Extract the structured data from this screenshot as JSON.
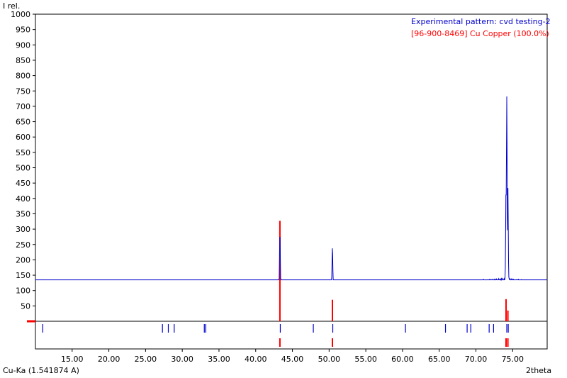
{
  "chart_data": {
    "type": "line",
    "y_label": "I rel.",
    "x_label": "2theta",
    "radiation_label": "Cu-Ka (1.541874 A)",
    "xlim": [
      10,
      79.7
    ],
    "ylim": [
      0,
      1000
    ],
    "y_ticks": [
      50,
      100,
      150,
      200,
      250,
      300,
      350,
      400,
      450,
      500,
      550,
      600,
      650,
      700,
      750,
      800,
      850,
      900,
      950,
      1000
    ],
    "y_tick_labels": [
      "50",
      "100",
      "150",
      "200",
      "250",
      "300",
      "350",
      "400",
      "450",
      "500",
      "550",
      "600",
      "650",
      "700",
      "750",
      "800",
      "850",
      "900",
      "950",
      "1000"
    ],
    "x_ticks": [
      15,
      20,
      25,
      30,
      35,
      40,
      45,
      50,
      55,
      60,
      65,
      70,
      75
    ],
    "x_tick_labels": [
      "15.00",
      "20.00",
      "25.00",
      "30.00",
      "35.00",
      "40.00",
      "45.00",
      "50.00",
      "55.00",
      "60.00",
      "65.00",
      "70.00",
      "75.00"
    ],
    "series": [
      {
        "name": "Experimental pattern: cvd testing-2",
        "color": "#0000cc",
        "baseline": [
          [
            10,
            40
          ],
          [
            15,
            55
          ],
          [
            20,
            70
          ],
          [
            25,
            88
          ],
          [
            30,
            102
          ],
          [
            35,
            110
          ],
          [
            40,
            115
          ],
          [
            45,
            119
          ],
          [
            50,
            122
          ],
          [
            55,
            123
          ],
          [
            60,
            125
          ],
          [
            65,
            127
          ],
          [
            70,
            130
          ],
          [
            74,
            135
          ],
          [
            79.7,
            125
          ]
        ],
        "peaks": [
          {
            "x": 43.3,
            "y": 287
          },
          {
            "x": 50.45,
            "y": 240
          },
          {
            "x": 74.1,
            "y": 435
          },
          {
            "x": 74.2,
            "y": 732
          },
          {
            "x": 74.35,
            "y": 440
          }
        ]
      },
      {
        "name": "[96-900-8469] Cu  Copper (100.0%)",
        "color": "#ff0000",
        "sticks": [
          {
            "x": 43.3,
            "y": 327
          },
          {
            "x": 50.45,
            "y": 70
          },
          {
            "x": 74.1,
            "y": 72
          },
          {
            "x": 74.35,
            "y": 35
          }
        ]
      }
    ],
    "reflection_ticks_row1": [
      11,
      27.3,
      28.1,
      28.9,
      33.0,
      33.2,
      43.35,
      47.85,
      50.5,
      60.4,
      65.85,
      68.8,
      69.3,
      71.8,
      72.4,
      74.2,
      74.4
    ],
    "reflection_ticks_row2": [
      43.3,
      50.45,
      74.1,
      74.35
    ]
  }
}
